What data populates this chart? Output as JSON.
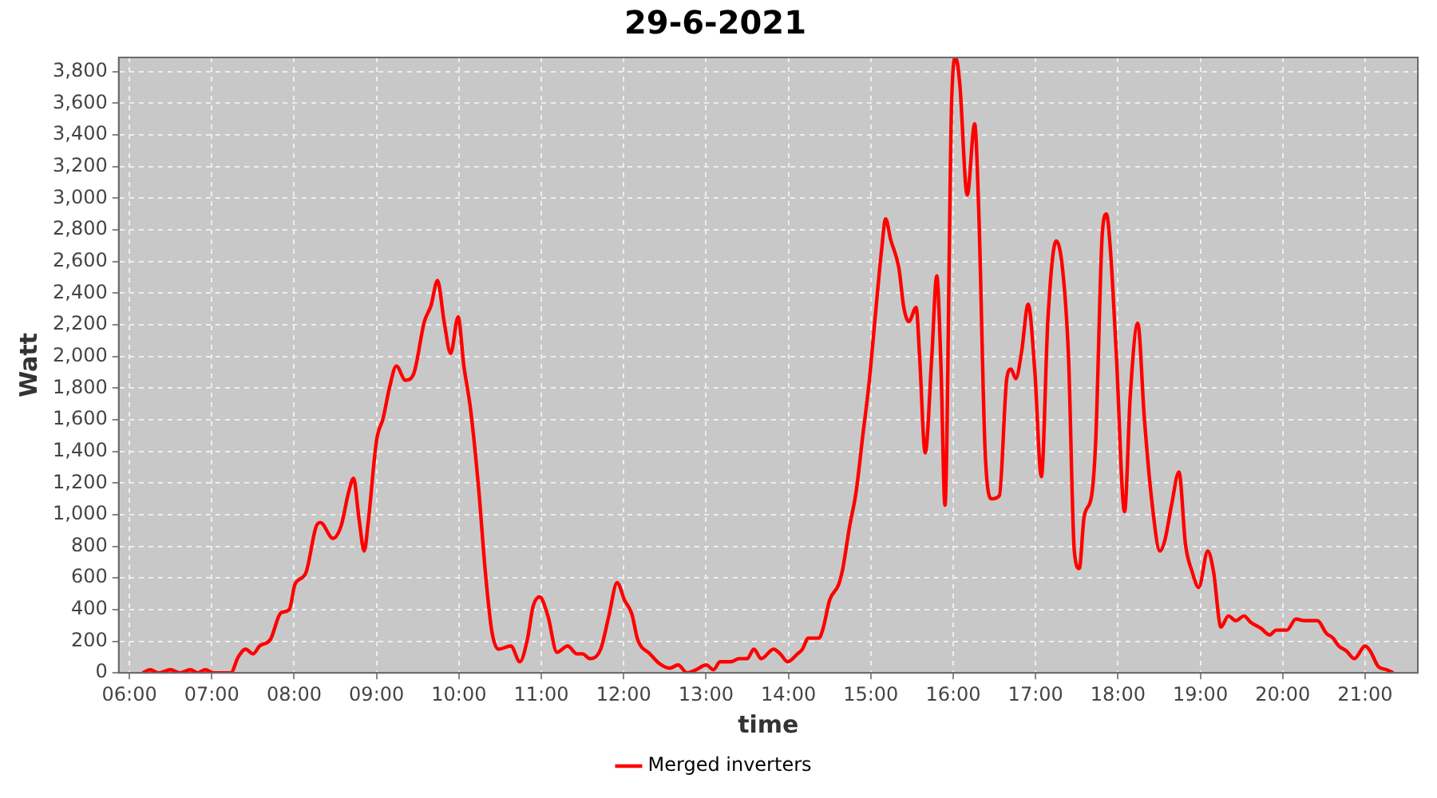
{
  "chart_data": {
    "type": "line",
    "title": "29-6-2021",
    "xlabel": "time",
    "ylabel": "Watt",
    "x": [
      6.16,
      6.25,
      6.35,
      6.5,
      6.61,
      6.74,
      6.83,
      6.92,
      7.02,
      7.23,
      7.32,
      7.41,
      7.5,
      7.58,
      7.71,
      7.84,
      7.94,
      8.01,
      8.14,
      8.27,
      8.32,
      8.47,
      8.57,
      8.66,
      8.72,
      8.79,
      8.85,
      8.9,
      9.0,
      9.08,
      9.16,
      9.24,
      9.35,
      9.45,
      9.58,
      9.66,
      9.74,
      9.82,
      9.9,
      9.99,
      10.06,
      10.14,
      10.24,
      10.32,
      10.4,
      10.48,
      10.63,
      10.74,
      10.83,
      10.9,
      10.98,
      11.08,
      11.19,
      11.32,
      11.43,
      11.5,
      11.59,
      11.72,
      11.82,
      11.92,
      12.01,
      12.1,
      12.17,
      12.32,
      12.43,
      12.56,
      12.66,
      12.77,
      12.88,
      13.0,
      13.09,
      13.17,
      13.3,
      13.4,
      13.5,
      13.58,
      13.67,
      13.82,
      13.9,
      13.99,
      14.11,
      14.17,
      14.24,
      14.37,
      14.42,
      14.5,
      14.61,
      14.66,
      14.74,
      14.82,
      14.9,
      14.98,
      15.06,
      15.13,
      15.18,
      15.24,
      15.34,
      15.4,
      15.46,
      15.55,
      15.59,
      15.66,
      15.74,
      15.8,
      15.85,
      15.9,
      15.98,
      16.03,
      16.08,
      16.17,
      16.26,
      16.31,
      16.39,
      16.47,
      16.56,
      16.65,
      16.7,
      16.76,
      16.83,
      16.91,
      16.99,
      17.07,
      17.15,
      17.25,
      17.33,
      17.4,
      17.47,
      17.53,
      17.59,
      17.68,
      17.73,
      17.81,
      17.86,
      17.91,
      17.98,
      18.08,
      18.15,
      18.24,
      18.32,
      18.41,
      18.51,
      18.57,
      18.65,
      18.74,
      18.82,
      18.9,
      18.98,
      19.09,
      19.16,
      19.25,
      19.34,
      19.43,
      19.53,
      19.61,
      19.74,
      19.84,
      19.92,
      20.05,
      20.16,
      20.27,
      20.42,
      20.53,
      20.61,
      20.68,
      20.77,
      20.87,
      21.0,
      21.06,
      21.16,
      21.26,
      21.34
    ],
    "series": [
      {
        "name": "Merged inverters",
        "color": "#ff0000",
        "values": [
          0,
          20,
          0,
          20,
          0,
          20,
          0,
          20,
          0,
          0,
          100,
          150,
          120,
          170,
          210,
          380,
          400,
          560,
          630,
          930,
          950,
          850,
          930,
          1140,
          1230,
          960,
          770,
          960,
          1470,
          1610,
          1810,
          1940,
          1850,
          1890,
          2220,
          2320,
          2480,
          2220,
          2020,
          2250,
          1940,
          1670,
          1160,
          640,
          260,
          150,
          170,
          70,
          210,
          420,
          480,
          360,
          130,
          170,
          120,
          120,
          90,
          150,
          360,
          570,
          460,
          370,
          210,
          120,
          60,
          30,
          50,
          0,
          20,
          50,
          20,
          70,
          70,
          90,
          90,
          150,
          90,
          150,
          120,
          70,
          120,
          150,
          220,
          220,
          280,
          460,
          560,
          660,
          920,
          1140,
          1490,
          1840,
          2290,
          2670,
          2870,
          2740,
          2560,
          2310,
          2220,
          2310,
          2020,
          1390,
          2000,
          2510,
          1960,
          1060,
          3590,
          3890,
          3720,
          3020,
          3470,
          2920,
          1370,
          1100,
          1120,
          1860,
          1920,
          1860,
          2030,
          2330,
          1910,
          1240,
          2240,
          2730,
          2540,
          1990,
          770,
          660,
          990,
          1120,
          1470,
          2780,
          2900,
          2660,
          2010,
          1020,
          1760,
          2210,
          1610,
          1090,
          770,
          840,
          1060,
          1270,
          810,
          640,
          540,
          770,
          640,
          290,
          360,
          330,
          360,
          320,
          280,
          240,
          270,
          270,
          340,
          330,
          330,
          250,
          220,
          170,
          140,
          90,
          170,
          140,
          40,
          20,
          0
        ]
      }
    ],
    "xlim": [
      5.87,
      21.64
    ],
    "xticks": [
      {
        "value": 6,
        "label": "06:00"
      },
      {
        "value": 7,
        "label": "07:00"
      },
      {
        "value": 8,
        "label": "08:00"
      },
      {
        "value": 9,
        "label": "09:00"
      },
      {
        "value": 10,
        "label": "10:00"
      },
      {
        "value": 11,
        "label": "11:00"
      },
      {
        "value": 12,
        "label": "12:00"
      },
      {
        "value": 13,
        "label": "13:00"
      },
      {
        "value": 14,
        "label": "14:00"
      },
      {
        "value": 15,
        "label": "15:00"
      },
      {
        "value": 16,
        "label": "16:00"
      },
      {
        "value": 17,
        "label": "17:00"
      },
      {
        "value": 18,
        "label": "18:00"
      },
      {
        "value": 19,
        "label": "19:00"
      },
      {
        "value": 20,
        "label": "20:00"
      },
      {
        "value": 21,
        "label": "21:00"
      }
    ],
    "ylim": [
      0,
      3890
    ],
    "yticks": [
      0,
      {
        "value": 200,
        "label": "200"
      },
      {
        "value": 400,
        "label": "400"
      },
      {
        "value": 600,
        "label": "600"
      },
      {
        "value": 800,
        "label": "800"
      },
      {
        "value": 1000,
        "label": "1,000"
      },
      {
        "value": 1200,
        "label": "1,200"
      },
      {
        "value": 1400,
        "label": "1,400"
      },
      {
        "value": 1600,
        "label": "1,600"
      },
      {
        "value": 1800,
        "label": "1,800"
      },
      {
        "value": 2000,
        "label": "2,000"
      },
      {
        "value": 2200,
        "label": "2,200"
      },
      {
        "value": 2400,
        "label": "2,400"
      },
      {
        "value": 2600,
        "label": "2,600"
      },
      {
        "value": 2800,
        "label": "2,800"
      },
      {
        "value": 3000,
        "label": "3,000"
      },
      {
        "value": 3200,
        "label": "3,200"
      },
      {
        "value": 3400,
        "label": "3,400"
      },
      {
        "value": 3600,
        "label": "3,600"
      },
      {
        "value": 3800,
        "label": "3,800"
      }
    ],
    "grid": true,
    "legend": "bottom",
    "marker": "none",
    "line_style": "solid"
  }
}
